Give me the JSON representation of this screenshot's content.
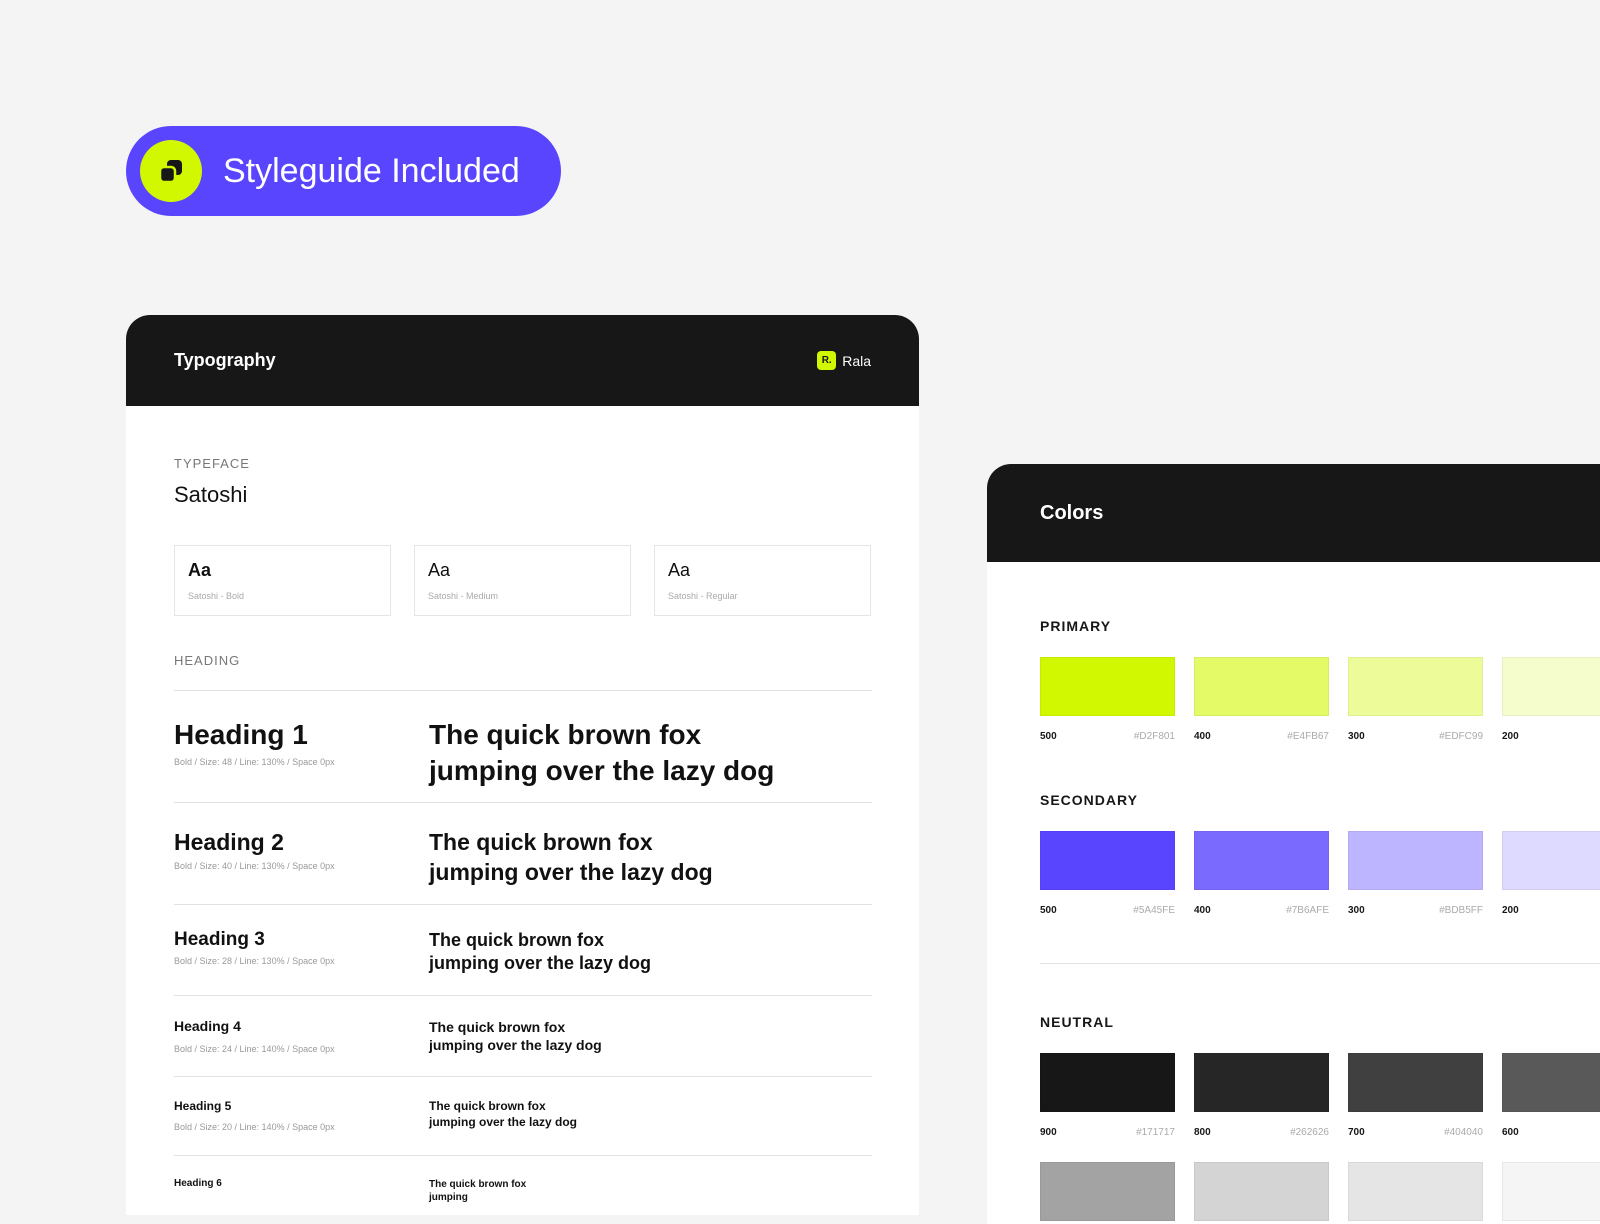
{
  "badge": {
    "label": "Styleguide Included",
    "icon": "overlapping-squares-icon",
    "color": "#5A45FE",
    "icon_bg": "#D2F801"
  },
  "typography": {
    "title": "Typography",
    "brand_logo": "R.",
    "brand_name": "Rala",
    "typeface_label": "TYPEFACE",
    "typeface": "Satoshi",
    "fonts": [
      {
        "sample": "Aa",
        "name": "Satoshi - Bold"
      },
      {
        "sample": "Aa",
        "name": "Satoshi - Medium"
      },
      {
        "sample": "Aa",
        "name": "Satoshi - Regular"
      }
    ],
    "heading_label": "HEADING",
    "headings": [
      {
        "name": "Heading 1",
        "spec": "Bold / Size: 48 / Line: 130% / Space 0px",
        "sample": "The quick brown fox jumping over the lazy dog"
      },
      {
        "name": "Heading 2",
        "spec": "Bold / Size: 40 / Line: 130% / Space 0px",
        "sample": "The quick brown fox jumping over the lazy dog"
      },
      {
        "name": "Heading 3",
        "spec": "Bold / Size: 28 / Line: 130% / Space 0px",
        "sample": "The quick brown fox jumping over the lazy dog"
      },
      {
        "name": "Heading 4",
        "spec": "Bold / Size: 24 / Line: 140% / Space 0px",
        "sample": "The quick brown fox jumping over the lazy dog"
      },
      {
        "name": "Heading 5",
        "spec": "Bold / Size: 20 / Line: 140% / Space 0px",
        "sample": "The quick brown fox jumping over the lazy dog"
      },
      {
        "name": "Heading 6",
        "spec": "",
        "sample": "The quick brown fox jumping"
      }
    ]
  },
  "colors": {
    "title": "Colors",
    "groups": [
      {
        "label": "PRIMARY",
        "swatches": [
          {
            "level": "500",
            "hex": "#D2F801"
          },
          {
            "level": "400",
            "hex": "#E4FB67"
          },
          {
            "level": "300",
            "hex": "#EDFC99"
          },
          {
            "level": "200",
            "hex": "",
            "color": "#F5FDCC"
          }
        ]
      },
      {
        "label": "SECONDARY",
        "swatches": [
          {
            "level": "500",
            "hex": "#5A45FE"
          },
          {
            "level": "400",
            "hex": "#7B6AFE"
          },
          {
            "level": "300",
            "hex": "#BDB5FF"
          },
          {
            "level": "200",
            "hex": "",
            "color": "#DEDAFF"
          }
        ]
      },
      {
        "label": "NEUTRAL",
        "swatches": [
          {
            "level": "900",
            "hex": "#171717"
          },
          {
            "level": "800",
            "hex": "#262626"
          },
          {
            "level": "700",
            "hex": "#404040"
          },
          {
            "level": "600",
            "hex": "",
            "color": "#595959"
          }
        ],
        "more": [
          "#A3A3A3",
          "#D4D4D4",
          "#E5E5E5",
          "#F5F5F5"
        ]
      }
    ]
  }
}
